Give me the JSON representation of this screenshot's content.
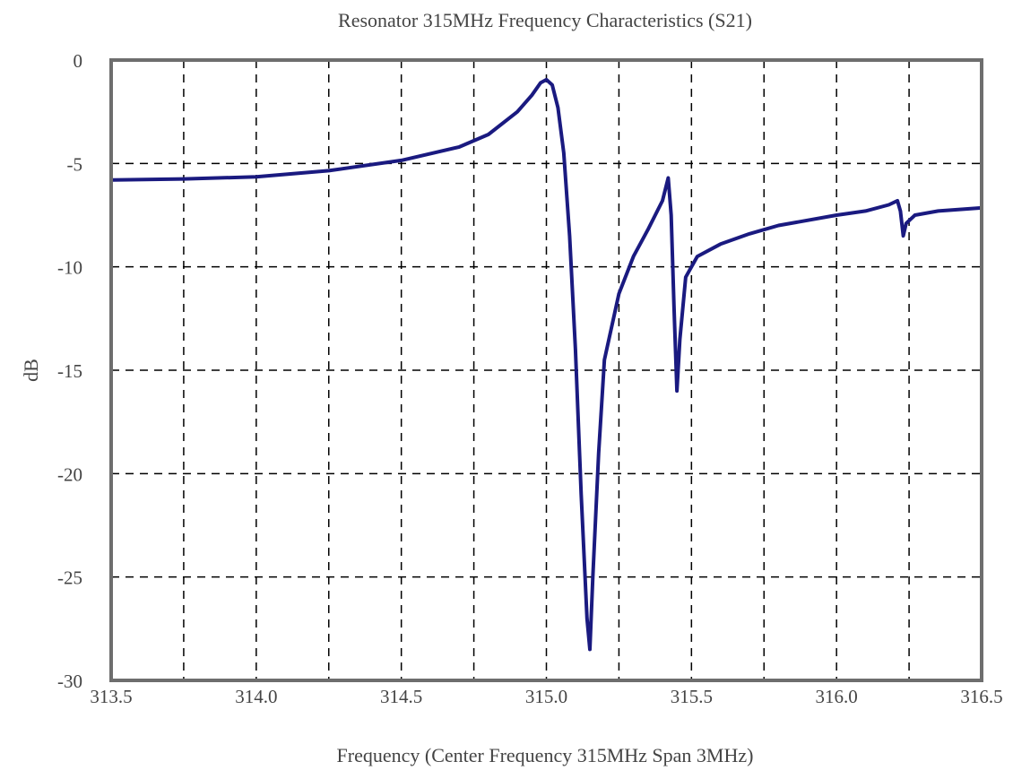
{
  "chart_data": {
    "type": "line",
    "title": "Resonator 315MHz Frequency Characteristics (S21)",
    "xlabel": "Frequency (Center Frequency 315MHz Span 3MHz)",
    "ylabel": "dB",
    "xlim": [
      313.5,
      316.5
    ],
    "ylim": [
      -30,
      0
    ],
    "x_ticks": [
      313.5,
      314.0,
      314.5,
      315.0,
      315.5,
      316.0,
      316.5
    ],
    "x_tick_labels": [
      "313.5",
      "314.0",
      "314.5",
      "315.0",
      "315.5",
      "316.0",
      "316.5"
    ],
    "y_ticks": [
      0,
      -5,
      -10,
      -15,
      -20,
      -25,
      -30
    ],
    "y_tick_labels": [
      "0",
      "-5",
      "-10",
      "-15",
      "-20",
      "-25",
      "-30"
    ],
    "grid": true,
    "grid_style": "dashed",
    "x_grid_step": 0.25,
    "y_grid_step": 5,
    "line_color": "#1a1a80",
    "series": [
      {
        "x": [
          313.5,
          313.75,
          314.0,
          314.25,
          314.5,
          314.7,
          314.8,
          314.9,
          314.95,
          314.98,
          315.0,
          315.02,
          315.04,
          315.06,
          315.08,
          315.1,
          315.12,
          315.14,
          315.15,
          315.16,
          315.18,
          315.2,
          315.25,
          315.3,
          315.35,
          315.4,
          315.42,
          315.43,
          315.44,
          315.45,
          315.46,
          315.48,
          315.52,
          315.6,
          315.7,
          315.8,
          316.0,
          316.1,
          316.18,
          316.21,
          316.22,
          316.23,
          316.24,
          316.27,
          316.35,
          316.5
        ],
        "y": [
          -5.8,
          -5.75,
          -5.65,
          -5.35,
          -4.85,
          -4.2,
          -3.6,
          -2.5,
          -1.7,
          -1.1,
          -0.95,
          -1.2,
          -2.3,
          -4.5,
          -8.5,
          -14,
          -21,
          -27,
          -28.5,
          -25,
          -19,
          -14.5,
          -11.3,
          -9.5,
          -8.2,
          -6.8,
          -5.7,
          -7.5,
          -12,
          -16,
          -13.5,
          -10.5,
          -9.5,
          -8.9,
          -8.4,
          -8.0,
          -7.5,
          -7.3,
          -7.0,
          -6.8,
          -7.3,
          -8.5,
          -7.9,
          -7.5,
          -7.3,
          -7.15
        ]
      }
    ]
  }
}
